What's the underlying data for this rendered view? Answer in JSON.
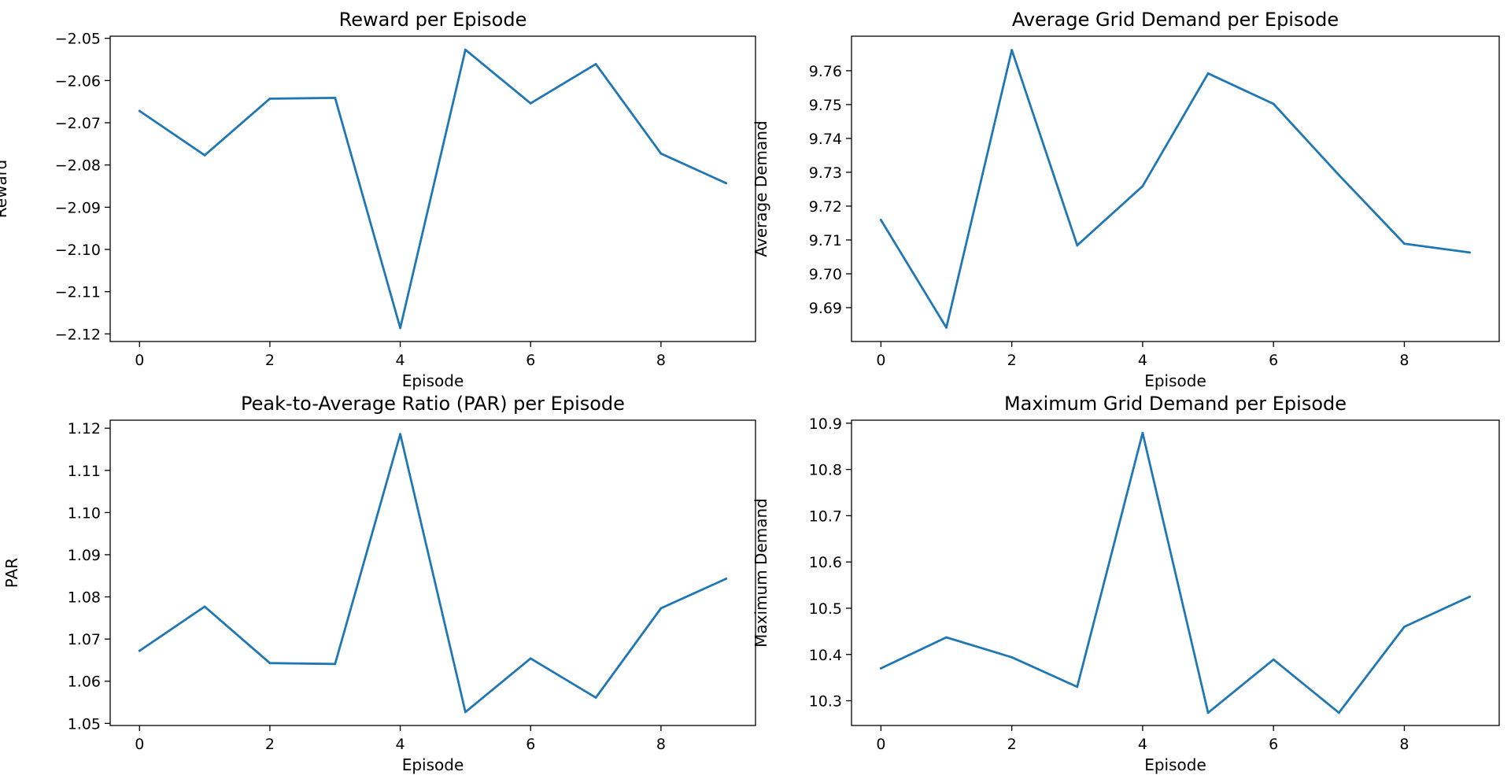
{
  "chart_data": [
    {
      "type": "line",
      "title": "Reward per Episode",
      "xlabel": "Episode",
      "ylabel": "Reward",
      "x": [
        0,
        1,
        2,
        3,
        4,
        5,
        6,
        7,
        8,
        9
      ],
      "series": [
        {
          "values": [
            -2.0672,
            -2.0777,
            -2.0643,
            -2.0641,
            -2.1186,
            -2.0527,
            -2.0654,
            -2.0561,
            -2.0773,
            -2.0843
          ]
        }
      ],
      "xlim": [
        -0.45,
        9.45
      ],
      "ylim": [
        -2.1218,
        -2.0495
      ],
      "xticks": [
        0,
        2,
        4,
        6,
        8
      ],
      "yticks": [
        -2.12,
        -2.11,
        -2.1,
        -2.09,
        -2.08,
        -2.07,
        -2.06,
        -2.05
      ],
      "ytick_labels": [
        "−2.12",
        "−2.11",
        "−2.10",
        "−2.09",
        "−2.08",
        "−2.07",
        "−2.06",
        "−2.05"
      ],
      "grid": false,
      "color": "#1f77b4"
    },
    {
      "type": "line",
      "title": "Average Grid Demand per Episode",
      "xlabel": "Episode",
      "ylabel": "Average Demand",
      "x": [
        0,
        1,
        2,
        3,
        4,
        5,
        6,
        7,
        8,
        9
      ],
      "series": [
        {
          "values": [
            9.7159,
            9.6841,
            9.7661,
            9.7084,
            9.7259,
            9.7592,
            9.7502,
            9.7292,
            9.7089,
            9.7063
          ]
        }
      ],
      "xlim": [
        -0.45,
        9.45
      ],
      "ylim": [
        9.68,
        9.7702
      ],
      "xticks": [
        0,
        2,
        4,
        6,
        8
      ],
      "yticks": [
        9.69,
        9.7,
        9.71,
        9.72,
        9.73,
        9.74,
        9.75,
        9.76
      ],
      "ytick_labels": [
        "9.69",
        "9.70",
        "9.71",
        "9.72",
        "9.73",
        "9.74",
        "9.75",
        "9.76"
      ],
      "grid": false,
      "color": "#1f77b4"
    },
    {
      "type": "line",
      "title": "Peak-to-Average Ratio (PAR) per Episode",
      "xlabel": "Episode",
      "ylabel": "PAR",
      "x": [
        0,
        1,
        2,
        3,
        4,
        5,
        6,
        7,
        8,
        9
      ],
      "series": [
        {
          "values": [
            1.0672,
            1.0777,
            1.0643,
            1.0641,
            1.1186,
            1.0527,
            1.0654,
            1.0561,
            1.0773,
            1.0843
          ]
        }
      ],
      "xlim": [
        -0.45,
        9.45
      ],
      "ylim": [
        1.0495,
        1.1219
      ],
      "xticks": [
        0,
        2,
        4,
        6,
        8
      ],
      "yticks": [
        1.05,
        1.06,
        1.07,
        1.08,
        1.09,
        1.1,
        1.11,
        1.12
      ],
      "ytick_labels": [
        "1.05",
        "1.06",
        "1.07",
        "1.08",
        "1.09",
        "1.10",
        "1.11",
        "1.12"
      ],
      "grid": false,
      "color": "#1f77b4"
    },
    {
      "type": "line",
      "title": "Maximum Grid Demand per Episode",
      "xlabel": "Episode",
      "ylabel": "Maximum Demand",
      "x": [
        0,
        1,
        2,
        3,
        4,
        5,
        6,
        7,
        8,
        9
      ],
      "series": [
        {
          "values": [
            10.37,
            10.437,
            10.394,
            10.33,
            10.879,
            10.274,
            10.389,
            10.274,
            10.46,
            10.525
          ]
        }
      ],
      "xlim": [
        -0.45,
        9.45
      ],
      "ylim": [
        10.2465,
        10.9065
      ],
      "xticks": [
        0,
        2,
        4,
        6,
        8
      ],
      "yticks": [
        10.3,
        10.4,
        10.5,
        10.6,
        10.7,
        10.8,
        10.9
      ],
      "ytick_labels": [
        "10.3",
        "10.4",
        "10.5",
        "10.6",
        "10.7",
        "10.8",
        "10.9"
      ],
      "grid": false,
      "color": "#1f77b4"
    }
  ]
}
